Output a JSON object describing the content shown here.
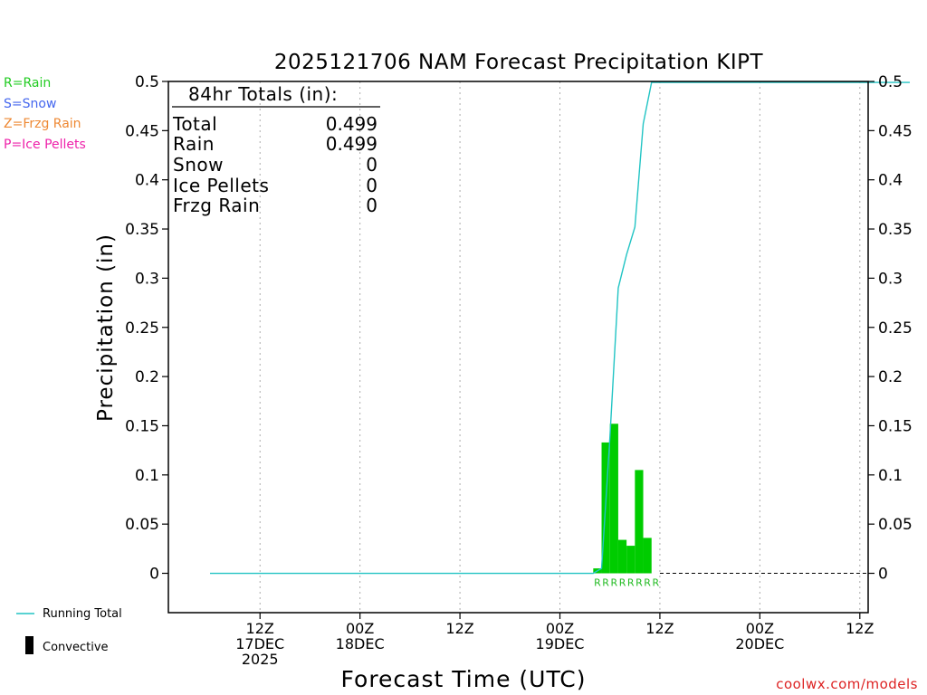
{
  "chart_data": {
    "type": "bar",
    "title": "2025121706 NAM Forecast Precipitation KIPT",
    "xlabel": "Forecast Time (UTC)",
    "ylabel": "Precipitation (in)",
    "ylim": [
      -0.04,
      0.5
    ],
    "xlim": [
      -5,
      79
    ],
    "yticks": [
      "0",
      "0.05",
      "0.1",
      "0.15",
      "0.2",
      "0.25",
      "0.3",
      "0.35",
      "0.4",
      "0.45",
      "0.5"
    ],
    "xticks": [
      {
        "hour": 6,
        "lines": [
          "12Z",
          "17DEC",
          "2025"
        ]
      },
      {
        "hour": 18,
        "lines": [
          "00Z",
          "18DEC"
        ]
      },
      {
        "hour": 30,
        "lines": [
          "12Z"
        ]
      },
      {
        "hour": 42,
        "lines": [
          "00Z",
          "19DEC"
        ]
      },
      {
        "hour": 54,
        "lines": [
          "12Z"
        ]
      },
      {
        "hour": 66,
        "lines": [
          "00Z",
          "20DEC"
        ]
      },
      {
        "hour": 78,
        "lines": [
          "12Z"
        ]
      }
    ],
    "hourly_precip": {
      "name": "Rain",
      "hours": [
        47,
        48,
        49,
        50,
        51,
        52,
        53,
        54
      ],
      "values": [
        0.005,
        0.133,
        0.152,
        0.034,
        0.028,
        0.105,
        0.036,
        0.0
      ]
    },
    "running_total": {
      "name": "Running Total",
      "hours": [
        0,
        46,
        47,
        48,
        49,
        50,
        51,
        52,
        53,
        54,
        84
      ],
      "values": [
        0,
        0,
        0.005,
        0.138,
        0.29,
        0.324,
        0.352,
        0.457,
        0.499,
        0.499,
        0.499
      ]
    },
    "ptype_labels": {
      "hours": [
        47,
        48,
        49,
        50,
        51,
        52,
        53,
        54
      ],
      "text": "R"
    }
  },
  "totals": {
    "header": "84hr Totals (in):",
    "rows": [
      {
        "label": "Total",
        "value": "0.499"
      },
      {
        "label": "Rain",
        "value": "0.499"
      },
      {
        "label": "Snow",
        "value": "0"
      },
      {
        "label": "Ice Pellets",
        "value": "0"
      },
      {
        "label": "Frzg Rain",
        "value": "0"
      }
    ]
  },
  "legend": {
    "types": [
      {
        "label": "R=Rain",
        "color": "#22cc22"
      },
      {
        "label": "S=Snow",
        "color": "#4466ee"
      },
      {
        "label": "Z=Frzg Rain",
        "color": "#ee8833"
      },
      {
        "label": "P=Ice Pellets",
        "color": "#ee22aa"
      }
    ],
    "running_total": "Running Total",
    "convective": "Convective"
  },
  "credit": "coolwx.com/models",
  "colors": {
    "bar": "#00cc00",
    "line": "#22c4c4",
    "rlabel": "#22bb22",
    "credit": "#dd2222"
  }
}
